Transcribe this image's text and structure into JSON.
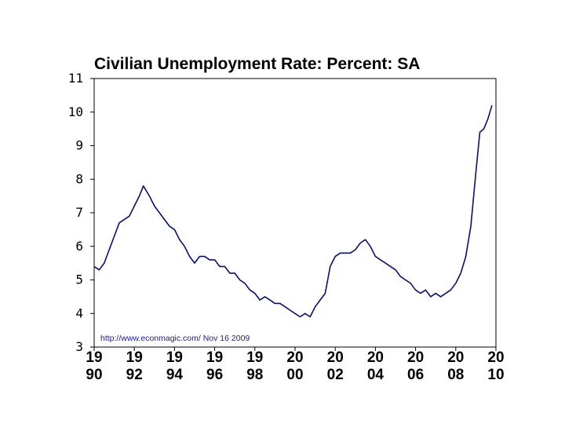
{
  "chart_data": {
    "type": "line",
    "title": "Civilian Unemployment Rate: Percent: SA",
    "source_note": "http://www.econmagic.com/   Nov 16 2009",
    "ylim": [
      3,
      11
    ],
    "y_ticks": [
      "3",
      "4",
      "5",
      "6",
      "7",
      "8",
      "9",
      "10",
      "11"
    ],
    "xlim": [
      1990,
      2010
    ],
    "x_ticks": [
      {
        "value": 1990,
        "top": "19",
        "bottom": "90"
      },
      {
        "value": 1992,
        "top": "19",
        "bottom": "92"
      },
      {
        "value": 1994,
        "top": "19",
        "bottom": "94"
      },
      {
        "value": 1996,
        "top": "19",
        "bottom": "96"
      },
      {
        "value": 1998,
        "top": "19",
        "bottom": "98"
      },
      {
        "value": 2000,
        "top": "20",
        "bottom": "00"
      },
      {
        "value": 2002,
        "top": "20",
        "bottom": "02"
      },
      {
        "value": 2004,
        "top": "20",
        "bottom": "04"
      },
      {
        "value": 2006,
        "top": "20",
        "bottom": "06"
      },
      {
        "value": 2008,
        "top": "20",
        "bottom": "08"
      },
      {
        "value": 2010,
        "top": "20",
        "bottom": "10"
      }
    ],
    "grid": false,
    "line_color": "#0a1064",
    "series": [
      {
        "x": [
          1990.0,
          1990.25,
          1990.5,
          1990.75,
          1991.0,
          1991.25,
          1991.5,
          1991.75,
          1992.0,
          1992.25,
          1992.45,
          1992.75,
          1993.0,
          1993.25,
          1993.5,
          1993.75,
          1994.0,
          1994.25,
          1994.5,
          1994.75,
          1995.0,
          1995.25,
          1995.5,
          1995.75,
          1996.0,
          1996.25,
          1996.5,
          1996.75,
          1997.0,
          1997.25,
          1997.5,
          1997.75,
          1998.0,
          1998.25,
          1998.5,
          1998.75,
          1999.0,
          1999.25,
          1999.5,
          1999.75,
          2000.0,
          2000.25,
          2000.5,
          2000.75,
          2001.0,
          2001.25,
          2001.5,
          2001.75,
          2002.0,
          2002.25,
          2002.5,
          2002.75,
          2003.0,
          2003.25,
          2003.5,
          2003.75,
          2004.0,
          2004.25,
          2004.5,
          2004.75,
          2005.0,
          2005.25,
          2005.5,
          2005.75,
          2006.0,
          2006.25,
          2006.5,
          2006.75,
          2007.0,
          2007.25,
          2007.5,
          2007.75,
          2008.0,
          2008.25,
          2008.5,
          2008.75,
          2009.0,
          2009.2,
          2009.4,
          2009.6,
          2009.8
        ],
        "values": [
          5.4,
          5.3,
          5.5,
          5.9,
          6.3,
          6.7,
          6.8,
          6.9,
          7.2,
          7.5,
          7.8,
          7.5,
          7.2,
          7.0,
          6.8,
          6.6,
          6.5,
          6.2,
          6.0,
          5.7,
          5.5,
          5.7,
          5.7,
          5.6,
          5.6,
          5.4,
          5.4,
          5.2,
          5.2,
          5.0,
          4.9,
          4.7,
          4.6,
          4.4,
          4.5,
          4.4,
          4.3,
          4.3,
          4.2,
          4.1,
          4.0,
          3.9,
          4.0,
          3.9,
          4.2,
          4.4,
          4.6,
          5.4,
          5.7,
          5.8,
          5.8,
          5.8,
          5.9,
          6.1,
          6.2,
          6.0,
          5.7,
          5.6,
          5.5,
          5.4,
          5.3,
          5.1,
          5.0,
          4.9,
          4.7,
          4.6,
          4.7,
          4.5,
          4.6,
          4.5,
          4.6,
          4.7,
          4.9,
          5.2,
          5.7,
          6.6,
          8.2,
          9.4,
          9.5,
          9.8,
          10.2
        ]
      }
    ]
  }
}
